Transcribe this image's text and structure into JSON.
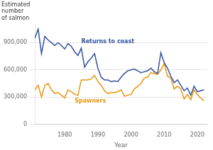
{
  "chart_data": {
    "type": "line",
    "ylabel": [
      "Estimated",
      "number",
      "of salmon"
    ],
    "xlabel": "Year",
    "x": [
      1971,
      1972,
      1973,
      1974,
      1975,
      1976,
      1977,
      1978,
      1979,
      1980,
      1981,
      1982,
      1983,
      1984,
      1985,
      1986,
      1987,
      1988,
      1989,
      1990,
      1991,
      1992,
      1993,
      1994,
      1995,
      1996,
      1997,
      1998,
      1999,
      2000,
      2001,
      2002,
      2003,
      2004,
      2005,
      2006,
      2007,
      2008,
      2009,
      2010,
      2011,
      2012,
      2013,
      2014,
      2015,
      2016,
      2017,
      2018,
      2019,
      2020,
      2021,
      2022
    ],
    "series": [
      {
        "name": "Returns to coast",
        "color": "#3352a0",
        "values": [
          950000,
          1050000,
          780000,
          970000,
          930000,
          900000,
          870000,
          900000,
          870000,
          830000,
          890000,
          860000,
          800000,
          760000,
          840000,
          630000,
          690000,
          730000,
          780000,
          620000,
          520000,
          490000,
          490000,
          470000,
          480000,
          470000,
          520000,
          560000,
          590000,
          600000,
          610000,
          590000,
          570000,
          580000,
          590000,
          620000,
          580000,
          560000,
          790000,
          680000,
          620000,
          530000,
          460000,
          490000,
          430000,
          370000,
          400000,
          320000,
          420000,
          360000,
          370000,
          380000
        ]
      },
      {
        "name": "Spawners",
        "color": "#e8960e",
        "values": [
          380000,
          430000,
          300000,
          430000,
          450000,
          380000,
          340000,
          350000,
          320000,
          290000,
          380000,
          360000,
          330000,
          320000,
          490000,
          490000,
          490000,
          500000,
          540000,
          470000,
          430000,
          370000,
          340000,
          350000,
          350000,
          360000,
          380000,
          310000,
          320000,
          330000,
          390000,
          420000,
          450000,
          510000,
          520000,
          570000,
          560000,
          550000,
          600000,
          670000,
          530000,
          510000,
          390000,
          420000,
          390000,
          280000,
          330000,
          270000,
          380000,
          330000,
          290000,
          260000
        ]
      }
    ],
    "xlim": [
      1971,
      2023
    ],
    "xticks": [
      1980,
      1990,
      2000,
      2010,
      2020
    ],
    "ylim": [
      0,
      1100000
    ],
    "yticks": [
      0,
      {
        "value": 300000,
        "label": "300,000"
      },
      {
        "value": 600000,
        "label": "600,000"
      },
      {
        "value": 900000,
        "label": "900,000"
      }
    ],
    "grid": "y"
  }
}
